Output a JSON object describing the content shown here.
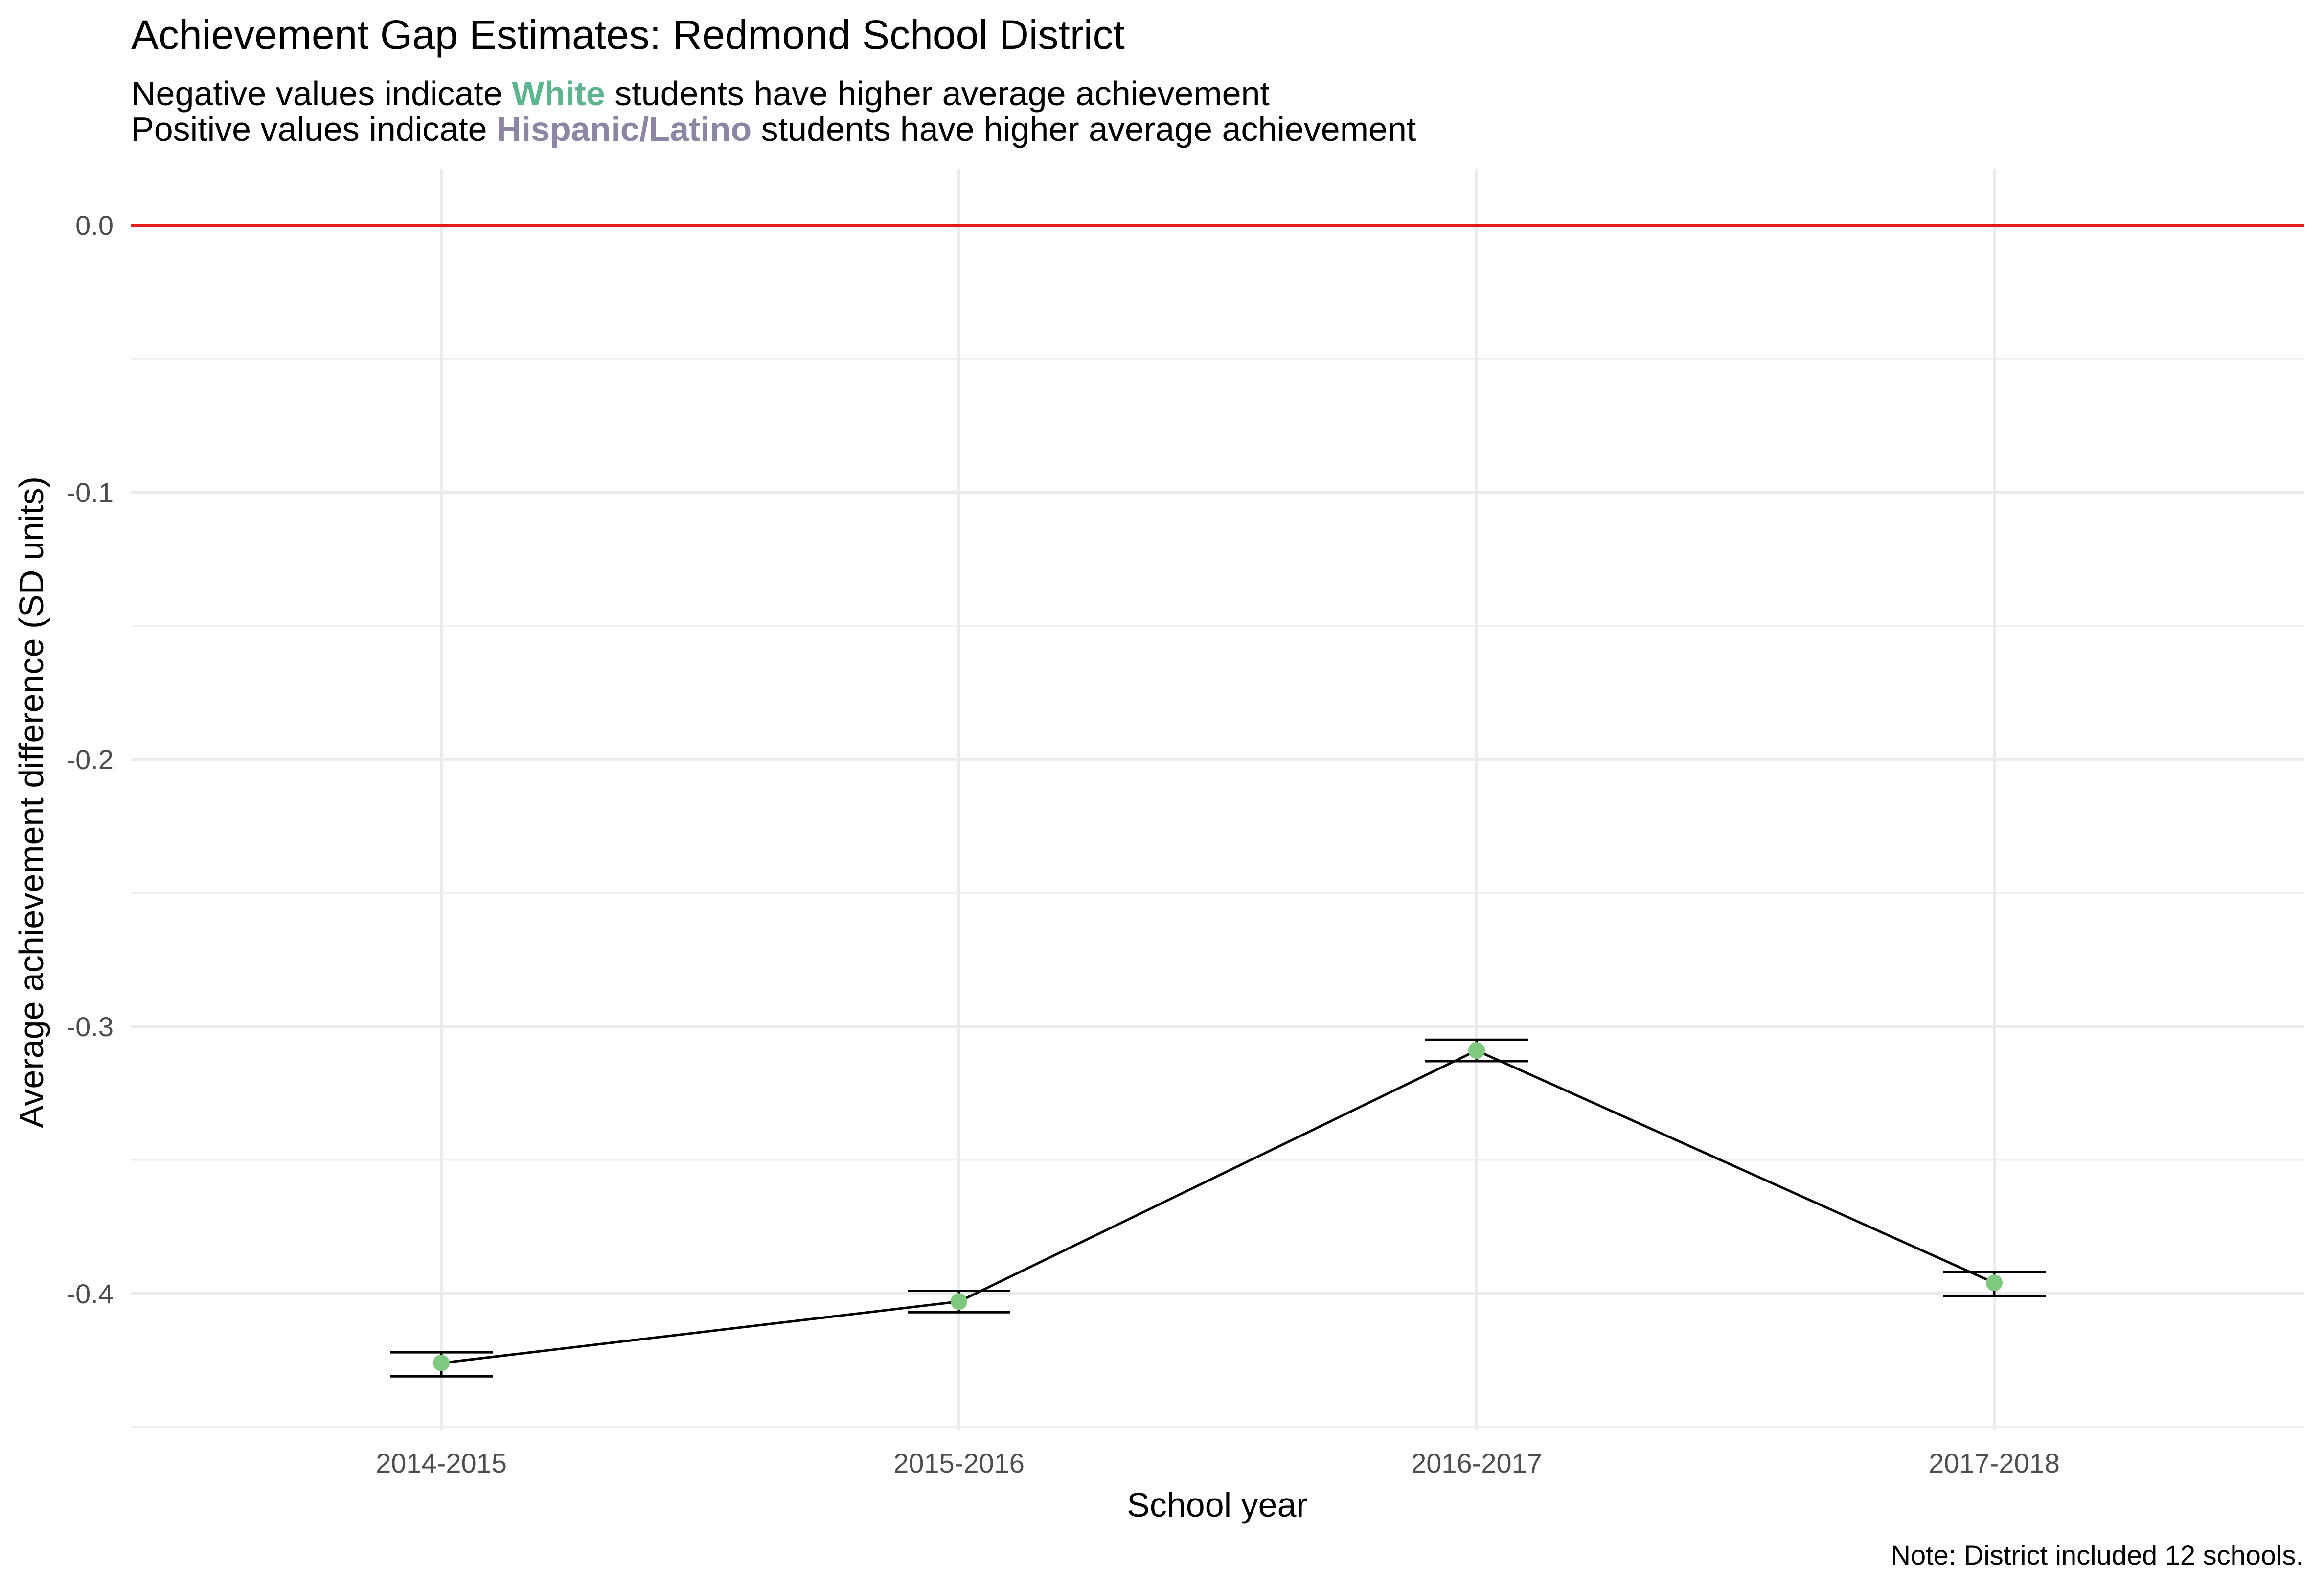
{
  "chart_data": {
    "type": "line",
    "title": "Achievement Gap Estimates: Redmond School District",
    "subtitle": {
      "line1": {
        "before": "Negative values indicate ",
        "highlight": "White",
        "after": " students have higher average achievement"
      },
      "line2": {
        "before": "Positive values indicate ",
        "highlight": "Hispanic/Latino",
        "after": " students have higher average achievement"
      }
    },
    "xlabel": "School year",
    "ylabel": "Average achievement difference (SD units)",
    "caption": "Note: District included 12 schools.",
    "categories": [
      "2014-2015",
      "2015-2016",
      "2016-2017",
      "2017-2018"
    ],
    "series": [
      {
        "values": [
          -0.426,
          -0.403,
          -0.309,
          -0.396
        ],
        "error_lower": [
          -0.431,
          -0.407,
          -0.313,
          -0.401
        ],
        "error_upper": [
          -0.422,
          -0.399,
          -0.305,
          -0.392
        ]
      }
    ],
    "ylim": [
      -0.45,
      0.02
    ],
    "yticks": [
      0.0,
      -0.1,
      -0.2,
      -0.3,
      -0.4
    ],
    "ytick_labels": [
      "0.0",
      "-0.1",
      "-0.2",
      "-0.3",
      "-0.4"
    ],
    "reference_line": 0.0,
    "grid": true,
    "colors": {
      "point": "#7fc97f",
      "line": "#000000",
      "reference": "#e41a1c",
      "white_highlight": "#5db58f",
      "hispanic_highlight": "#8e84a3",
      "grid": "#ebebeb"
    }
  }
}
